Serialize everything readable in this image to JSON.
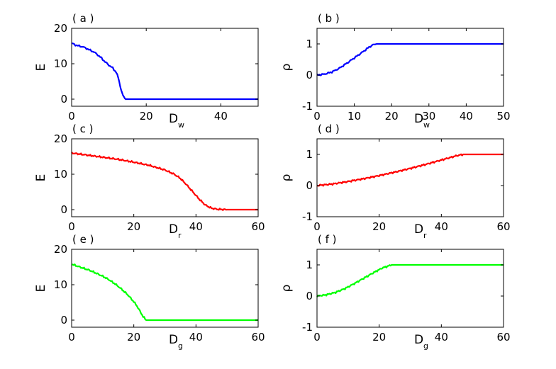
{
  "figure": {
    "background": "#ffffff"
  },
  "chart_data": [
    {
      "type": "line",
      "panel_label": "( a )",
      "xlabel": "D",
      "xlabel_sub": "w",
      "ylabel": "E",
      "xlim": [
        0,
        50
      ],
      "ylim": [
        -2,
        20
      ],
      "xticks": [
        0,
        20,
        40
      ],
      "yticks": [
        0,
        10,
        20
      ],
      "color": "#0000ff",
      "series": [
        {
          "x": [
            0,
            1,
            2,
            3,
            4,
            5,
            6,
            7,
            8,
            9,
            10,
            11,
            12,
            12.5,
            13,
            13.5,
            14,
            14.5,
            15,
            20,
            30,
            40,
            50
          ],
          "y": [
            15.8,
            15.3,
            15.0,
            14.8,
            14.3,
            13.8,
            13.3,
            12.5,
            11.6,
            10.5,
            9.6,
            8.8,
            7.5,
            6.0,
            3.8,
            1.8,
            0.5,
            0.1,
            0,
            0,
            0,
            0,
            0
          ]
        }
      ]
    },
    {
      "type": "line",
      "panel_label": "( b )",
      "xlabel": "D",
      "xlabel_sub": "w",
      "ylabel": "ρ",
      "xlim": [
        0,
        50
      ],
      "ylim": [
        -1,
        1.5
      ],
      "xticks": [
        0,
        10,
        20,
        30,
        40,
        50
      ],
      "yticks": [
        -1,
        0,
        1
      ],
      "color": "#0000ff",
      "series": [
        {
          "x": [
            0,
            2,
            4,
            6,
            8,
            10,
            12,
            14,
            15,
            16,
            20,
            30,
            40,
            50
          ],
          "y": [
            0.0,
            0.03,
            0.1,
            0.22,
            0.38,
            0.55,
            0.72,
            0.9,
            0.97,
            1.0,
            1.0,
            1.0,
            1.0,
            1.0
          ]
        }
      ]
    },
    {
      "type": "line",
      "panel_label": "( c )",
      "xlabel": "D",
      "xlabel_sub": "r",
      "ylabel": "E",
      "xlim": [
        0,
        60
      ],
      "ylim": [
        -2,
        20
      ],
      "xticks": [
        0,
        20,
        40,
        60
      ],
      "yticks": [
        0,
        10,
        20
      ],
      "color": "#ff0000",
      "series": [
        {
          "x": [
            0,
            5,
            10,
            15,
            20,
            25,
            30,
            33,
            35,
            37,
            39,
            41,
            43,
            45,
            47,
            50,
            55,
            60
          ],
          "y": [
            16.0,
            15.4,
            14.8,
            14.2,
            13.4,
            12.5,
            11.2,
            10.0,
            8.8,
            7.0,
            5.0,
            3.0,
            1.3,
            0.4,
            0.1,
            0,
            0,
            0
          ]
        }
      ]
    },
    {
      "type": "line",
      "panel_label": "( d )",
      "xlabel": "D",
      "xlabel_sub": "r",
      "ylabel": "ρ",
      "xlim": [
        0,
        60
      ],
      "ylim": [
        -1,
        1.5
      ],
      "xticks": [
        0,
        20,
        40,
        60
      ],
      "yticks": [
        -1,
        0,
        1
      ],
      "color": "#ff0000",
      "series": [
        {
          "x": [
            0,
            5,
            10,
            15,
            20,
            25,
            30,
            35,
            40,
            45,
            47,
            50,
            55,
            60
          ],
          "y": [
            0.0,
            0.05,
            0.13,
            0.22,
            0.32,
            0.43,
            0.55,
            0.68,
            0.82,
            0.96,
            1.0,
            1.0,
            1.0,
            1.0
          ]
        }
      ]
    },
    {
      "type": "line",
      "panel_label": "( e )",
      "xlabel": "D",
      "xlabel_sub": "g",
      "ylabel": "E",
      "xlim": [
        0,
        60
      ],
      "ylim": [
        -2,
        20
      ],
      "xticks": [
        0,
        20,
        40,
        60
      ],
      "yticks": [
        0,
        10,
        20
      ],
      "color": "#00ff00",
      "series": [
        {
          "x": [
            0,
            2,
            4,
            6,
            8,
            10,
            12,
            14,
            16,
            18,
            19,
            20,
            21,
            22,
            23,
            24,
            30,
            40,
            50,
            60
          ],
          "y": [
            15.8,
            15.2,
            14.6,
            14.0,
            13.2,
            12.4,
            11.4,
            10.2,
            8.8,
            7.2,
            6.2,
            5.2,
            4.0,
            2.5,
            1.0,
            0,
            0,
            0,
            0,
            0
          ]
        }
      ]
    },
    {
      "type": "line",
      "panel_label": "( f )",
      "xlabel": "D",
      "xlabel_sub": "g",
      "ylabel": "ρ",
      "xlim": [
        0,
        60
      ],
      "ylim": [
        -1,
        1.5
      ],
      "xticks": [
        0,
        20,
        40,
        60
      ],
      "yticks": [
        -1,
        0,
        1
      ],
      "color": "#00ff00",
      "series": [
        {
          "x": [
            0,
            3,
            6,
            9,
            12,
            15,
            18,
            21,
            24,
            30,
            40,
            50,
            60
          ],
          "y": [
            0.0,
            0.04,
            0.12,
            0.24,
            0.4,
            0.57,
            0.74,
            0.9,
            1.0,
            1.0,
            1.0,
            1.0,
            1.0
          ]
        }
      ]
    }
  ]
}
